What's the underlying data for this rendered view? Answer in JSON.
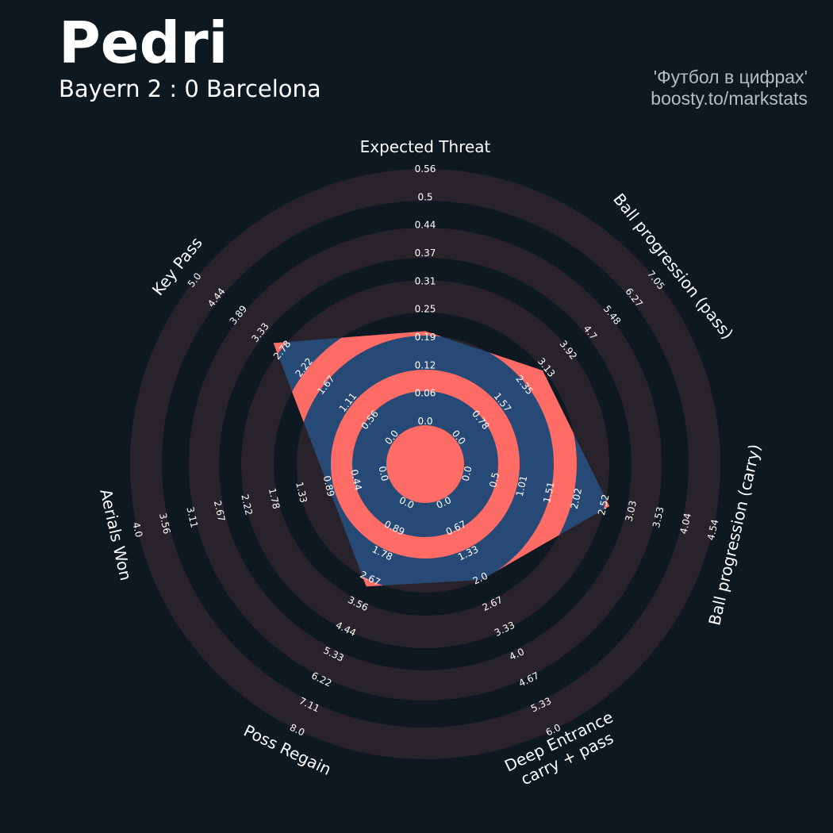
{
  "header": {
    "title": "Pedri",
    "subtitle": "Bayern 2 : 0 Barcelona",
    "credit_line1": "'Футбол в цифрах'",
    "credit_line2": "boosty.to/markstats"
  },
  "chart_data": {
    "type": "radar",
    "title": "Pedri",
    "subtitle": "Bayern 2 : 0 Barcelona",
    "colors": {
      "background": "#0e1820",
      "ring_light": "#28232a",
      "ring_dark": "#0e1820",
      "player_fill": "#264a75",
      "player_rings": "#ff6b65",
      "text": "#ffffff"
    },
    "params": [
      {
        "name": "Expected Threat",
        "lines": [
          "Expected Threat"
        ],
        "min": 0,
        "max": 0.56,
        "value": 0.2,
        "ticks": [
          "0.0",
          "0.06",
          "0.12",
          "0.19",
          "0.25",
          "0.31",
          "0.37",
          "0.44",
          "0.5",
          "0.56"
        ]
      },
      {
        "name": "Ball progression (pass)",
        "lines": [
          "Ball progression (pass)"
        ],
        "min": 0,
        "max": 7.05,
        "value": 3.0,
        "ticks": [
          "0.0",
          "0.78",
          "1.57",
          "2.35",
          "3.13",
          "3.92",
          "4.7",
          "5.48",
          "6.27",
          "7.05"
        ]
      },
      {
        "name": "Ball progression (carry)",
        "lines": [
          "Ball progression (carry)"
        ],
        "min": 0,
        "max": 4.54,
        "value": 2.63,
        "ticks": [
          "0.0",
          "0.5",
          "1.01",
          "1.51",
          "2.02",
          "2.52",
          "3.03",
          "3.53",
          "4.04",
          "4.54"
        ]
      },
      {
        "name": "Deep Entrance carry + pass",
        "lines": [
          "Deep Entrance",
          "carry + pass"
        ],
        "min": 0,
        "max": 6.0,
        "value": 2.04,
        "ticks": [
          "0.0",
          "0.67",
          "1.33",
          "2.0",
          "2.67",
          "3.33",
          "4.0",
          "4.67",
          "5.33",
          "6.0"
        ]
      },
      {
        "name": "Poss Regain",
        "lines": [
          "Poss Regain"
        ],
        "min": 0,
        "max": 8.0,
        "value": 2.95,
        "ticks": [
          "0.0",
          "0.89",
          "1.78",
          "2.67",
          "3.56",
          "4.44",
          "5.33",
          "6.22",
          "7.11",
          "8.0"
        ]
      },
      {
        "name": "Aerials Won",
        "lines": [
          "Aerials Won"
        ],
        "min": 0,
        "max": 4.0,
        "value": 0.9,
        "ticks": [
          "0.0",
          "0.44",
          "0.89",
          "1.33",
          "1.78",
          "2.22",
          "2.67",
          "3.11",
          "3.56",
          "4.0"
        ]
      },
      {
        "name": "Key Pass",
        "lines": [
          "Key Pass"
        ],
        "min": 0,
        "max": 5.0,
        "value": 3.0,
        "ticks": [
          "0.0",
          "0.56",
          "1.11",
          "1.67",
          "2.22",
          "2.78",
          "3.33",
          "3.89",
          "4.44",
          "5.0"
        ]
      }
    ]
  }
}
